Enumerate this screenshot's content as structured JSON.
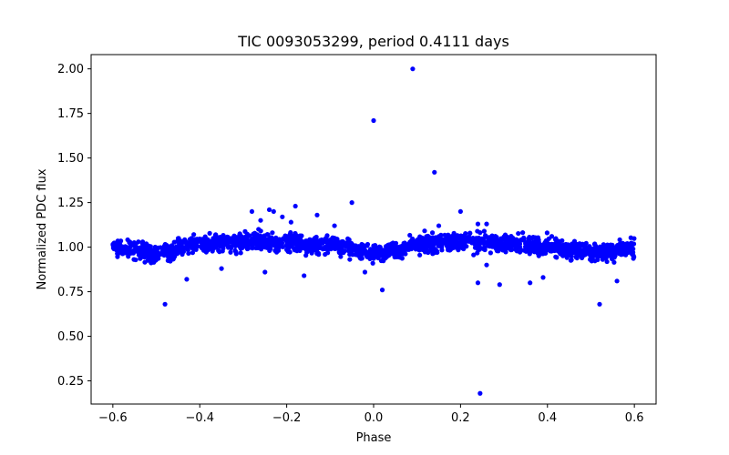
{
  "chart_data": {
    "type": "scatter",
    "title": "TIC 0093053299, period 0.4111 days",
    "xlabel": "Phase",
    "ylabel": "Normalized PDC flux",
    "xlim": [
      -0.65,
      0.65
    ],
    "ylim": [
      0.12,
      2.08
    ],
    "xticks": [
      -0.6,
      -0.4,
      -0.2,
      0.0,
      0.2,
      0.4,
      0.6
    ],
    "xtick_labels": [
      "−0.6",
      "−0.4",
      "−0.2",
      "0.0",
      "0.2",
      "0.4",
      "0.6"
    ],
    "yticks": [
      0.25,
      0.5,
      0.75,
      1.0,
      1.25,
      1.5,
      1.75,
      2.0
    ],
    "ytick_labels": [
      "0.25",
      "0.50",
      "0.75",
      "1.00",
      "1.25",
      "1.50",
      "1.75",
      "2.00"
    ],
    "marker_color": "#0000ff",
    "grid": false,
    "dense_band": {
      "description": "approximately 2000 points between phase -0.6 and 0.6 following the light curve below with scatter about +/-0.04",
      "x_range": [
        -0.6,
        0.6
      ],
      "n_points": 2000,
      "scatter": 0.025,
      "curve_x": [
        -0.6,
        -0.5,
        -0.4,
        -0.3,
        -0.2,
        -0.1,
        0.0,
        0.05,
        0.1,
        0.2,
        0.3,
        0.4,
        0.5,
        0.6
      ],
      "curve_y": [
        0.995,
        0.965,
        1.015,
        1.03,
        1.025,
        1.015,
        0.97,
        0.985,
        1.02,
        1.03,
        1.025,
        1.005,
        0.97,
        0.99
      ]
    },
    "outliers": [
      {
        "x": 0.09,
        "y": 2.0
      },
      {
        "x": 0.0,
        "y": 1.71
      },
      {
        "x": 0.14,
        "y": 1.42
      },
      {
        "x": -0.05,
        "y": 1.25
      },
      {
        "x": -0.28,
        "y": 1.2
      },
      {
        "x": -0.24,
        "y": 1.21
      },
      {
        "x": -0.23,
        "y": 1.2
      },
      {
        "x": -0.18,
        "y": 1.23
      },
      {
        "x": 0.2,
        "y": 1.2
      },
      {
        "x": -0.13,
        "y": 1.18
      },
      {
        "x": -0.21,
        "y": 1.17
      },
      {
        "x": -0.26,
        "y": 1.15
      },
      {
        "x": -0.09,
        "y": 1.12
      },
      {
        "x": -0.19,
        "y": 1.14
      },
      {
        "x": 0.15,
        "y": 1.12
      },
      {
        "x": 0.26,
        "y": 1.13
      },
      {
        "x": 0.24,
        "y": 1.13
      },
      {
        "x": -0.48,
        "y": 0.68
      },
      {
        "x": 0.52,
        "y": 0.68
      },
      {
        "x": 0.02,
        "y": 0.76
      },
      {
        "x": 0.24,
        "y": 0.8
      },
      {
        "x": 0.29,
        "y": 0.79
      },
      {
        "x": 0.36,
        "y": 0.8
      },
      {
        "x": 0.56,
        "y": 0.81
      },
      {
        "x": -0.43,
        "y": 0.82
      },
      {
        "x": -0.16,
        "y": 0.84
      },
      {
        "x": -0.25,
        "y": 0.86
      },
      {
        "x": -0.02,
        "y": 0.86
      },
      {
        "x": 0.39,
        "y": 0.83
      },
      {
        "x": -0.35,
        "y": 0.88
      },
      {
        "x": 0.26,
        "y": 0.9
      },
      {
        "x": 0.245,
        "y": 0.18
      }
    ]
  }
}
